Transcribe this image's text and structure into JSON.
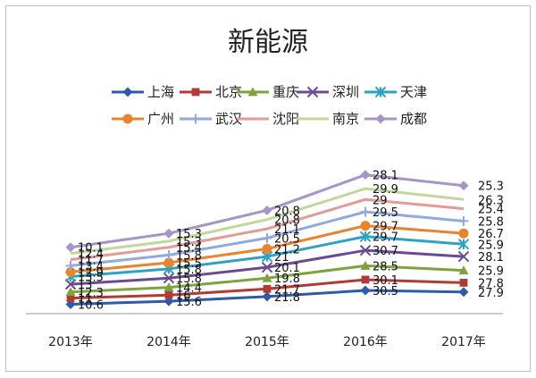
{
  "chart_data": {
    "type": "line",
    "title": "新能源",
    "xlabel": "",
    "ylabel": "",
    "categories": [
      "2013年",
      "2014年",
      "2015年",
      "2016年",
      "2017年"
    ],
    "grid": false,
    "legend_position": "top",
    "ylim": [
      0,
      30
    ],
    "series": [
      {
        "name": "上海",
        "color": "#2e5aa8",
        "marker": "diamond",
        "values": [
          10.6,
          15.6,
          21.8,
          30.5,
          27.9
        ],
        "plot": [
          1.0,
          2.0,
          3.5,
          5.5,
          5.0
        ]
      },
      {
        "name": "北京",
        "color": "#b23a36",
        "marker": "square",
        "values": [
          11.0,
          16.0,
          21.7,
          30.1,
          27.8
        ],
        "plot": [
          3.0,
          4.0,
          6.0,
          9.0,
          8.0
        ]
      },
      {
        "name": "重庆",
        "color": "#7ea33c",
        "marker": "triangle",
        "values": [
          12.3,
          14.4,
          19.8,
          28.5,
          25.9
        ],
        "plot": [
          5.0,
          6.5,
          9.5,
          13.5,
          12.0
        ]
      },
      {
        "name": "深圳",
        "color": "#6a4b93",
        "marker": "x",
        "values": [
          13.0,
          15.8,
          20.1,
          30.7,
          28.1
        ],
        "plot": [
          7.5,
          9.5,
          13.0,
          18.5,
          16.5
        ]
      },
      {
        "name": "天津",
        "color": "#2ea3c1",
        "marker": "asterisk",
        "values": [
          13.5,
          15.8,
          21.0,
          29.7,
          25.9
        ],
        "plot": [
          10.0,
          12.5,
          16.5,
          23.0,
          20.5
        ]
      },
      {
        "name": "广州",
        "color": "#e8842e",
        "marker": "circle",
        "values": [
          12.9,
          15.5,
          21.2,
          29.7,
          26.7
        ],
        "plot": [
          11.5,
          14.5,
          19.0,
          26.5,
          24.0
        ]
      },
      {
        "name": "武汉",
        "color": "#8faadc",
        "marker": "plus",
        "values": [
          13.4,
          15.8,
          20.5,
          29.5,
          25.8
        ],
        "plot": [
          13.5,
          17.0,
          22.5,
          31.0,
          28.0
        ]
      },
      {
        "name": "沈阳",
        "color": "#e39b99",
        "marker": "none",
        "values": [
          11.7,
          15.4,
          21.1,
          29.0,
          25.4
        ],
        "plot": [
          15.5,
          19.5,
          25.5,
          35.0,
          32.0
        ]
      },
      {
        "name": "南京",
        "color": "#c3d69b",
        "marker": "none",
        "values": [
          12.4,
          15.3,
          20.8,
          29.9,
          26.3
        ],
        "plot": [
          17.5,
          21.5,
          28.5,
          38.5,
          35.0
        ]
      },
      {
        "name": "成都",
        "color": "#a695c6",
        "marker": "diamond",
        "values": [
          10.1,
          15.3,
          20.8,
          28.1,
          25.3
        ],
        "plot": [
          19.5,
          24.0,
          31.5,
          43.0,
          39.5
        ]
      }
    ]
  }
}
